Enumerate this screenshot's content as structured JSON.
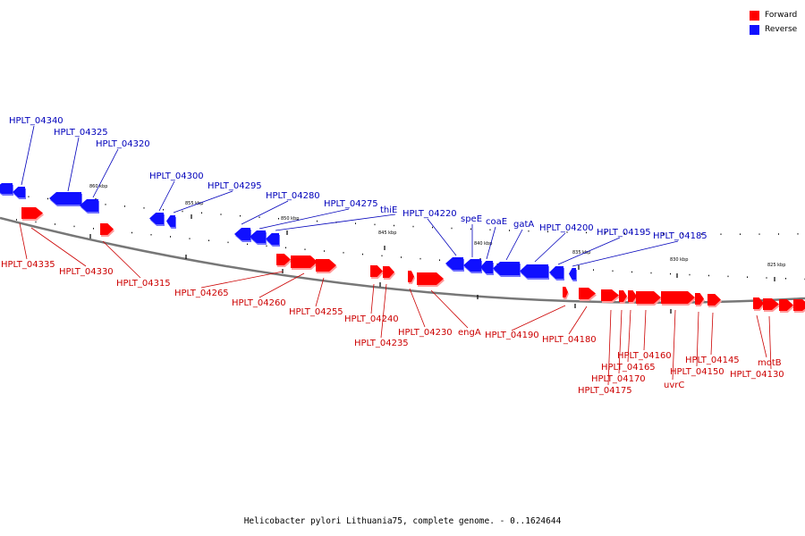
{
  "legend": {
    "items": [
      {
        "label": "Forward",
        "color": "#ff0000"
      },
      {
        "label": "Reverse",
        "color": "#1010ff"
      }
    ]
  },
  "caption": "Helicobacter pylori Lithuania75, complete genome. - 0..1624644",
  "colors": {
    "forward": "#ff0000",
    "forward_shade": "#ff9a9a",
    "reverse": "#1010ff",
    "reverse_shade": "#7070ff",
    "backbone": "#777777",
    "forward_label": "#cc0000",
    "reverse_label": "#0000bb"
  },
  "scale_labels": [
    "860 kbp",
    "855 kbp",
    "850 kbp",
    "845 kbp",
    "840 kbp",
    "835 kbp",
    "830 kbp",
    "825 kbp"
  ],
  "reverse_genes": [
    "HPLT_04340",
    "HPLT_04325",
    "HPLT_04320",
    "HPLT_04300",
    "HPLT_04295",
    "HPLT_04280",
    "HPLT_04275",
    "thiE",
    "HPLT_04220",
    "speE",
    "coaE",
    "gatA",
    "HPLT_04200",
    "HPLT_04195",
    "HPLT_04185"
  ],
  "forward_genes": [
    "HPLT_04335",
    "HPLT_04330",
    "HPLT_04315",
    "HPLT_04265",
    "HPLT_04260",
    "HPLT_04255",
    "HPLT_04240",
    "HPLT_04235",
    "HPLT_04230",
    "engA",
    "HPLT_04190",
    "HPLT_04180",
    "HPLT_04160",
    "HPLT_04165",
    "HPLT_04170",
    "HPLT_04175",
    "uvrC",
    "HPLT_04150",
    "HPLT_04145",
    "motB",
    "HPLT_04130"
  ]
}
